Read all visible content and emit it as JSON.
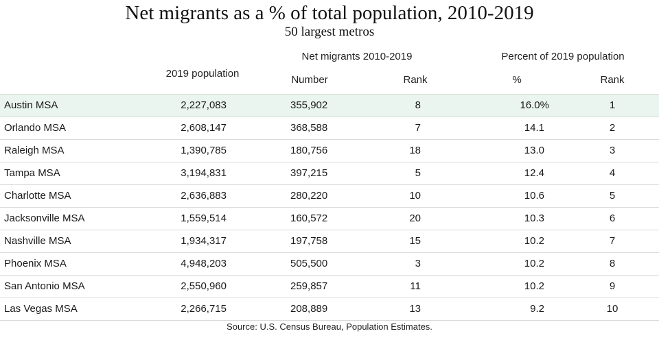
{
  "chart_data": {
    "type": "table",
    "title": "Net migrants as a % of total population, 2010-2019",
    "subtitle": "50 largest metros",
    "column_groups": [
      {
        "label": "Net migrants 2010-2019"
      },
      {
        "label": "Percent of 2019 population"
      }
    ],
    "columns": [
      "",
      "2019 population",
      "Number",
      "Rank",
      "%",
      "Rank"
    ],
    "rows": [
      {
        "metro": "Austin MSA",
        "population": "2,227,083",
        "number": "355,902",
        "rank": "8",
        "pct": "16.0%",
        "pct_rank": "1"
      },
      {
        "metro": "Orlando MSA",
        "population": "2,608,147",
        "number": "368,588",
        "rank": "7",
        "pct": "14.1",
        "pct_rank": "2"
      },
      {
        "metro": "Raleigh MSA",
        "population": "1,390,785",
        "number": "180,756",
        "rank": "18",
        "pct": "13.0",
        "pct_rank": "3"
      },
      {
        "metro": "Tampa MSA",
        "population": "3,194,831",
        "number": "397,215",
        "rank": "5",
        "pct": "12.4",
        "pct_rank": "4"
      },
      {
        "metro": "Charlotte MSA",
        "population": "2,636,883",
        "number": "280,220",
        "rank": "10",
        "pct": "10.6",
        "pct_rank": "5"
      },
      {
        "metro": "Jacksonville MSA",
        "population": "1,559,514",
        "number": "160,572",
        "rank": "20",
        "pct": "10.3",
        "pct_rank": "6"
      },
      {
        "metro": "Nashville MSA",
        "population": "1,934,317",
        "number": "197,758",
        "rank": "15",
        "pct": "10.2",
        "pct_rank": "7"
      },
      {
        "metro": "Phoenix MSA",
        "population": "4,948,203",
        "number": "505,500",
        "rank": "3",
        "pct": "10.2",
        "pct_rank": "8"
      },
      {
        "metro": "San Antonio MSA",
        "population": "2,550,960",
        "number": "259,857",
        "rank": "11",
        "pct": "10.2",
        "pct_rank": "9"
      },
      {
        "metro": "Las Vegas MSA",
        "population": "2,266,715",
        "number": "208,889",
        "rank": "13",
        "pct": "9.2",
        "pct_rank": "10"
      }
    ],
    "highlight_row_color": "#eaf5ef",
    "source": "Source:  U.S. Census Bureau, Population Estimates."
  }
}
